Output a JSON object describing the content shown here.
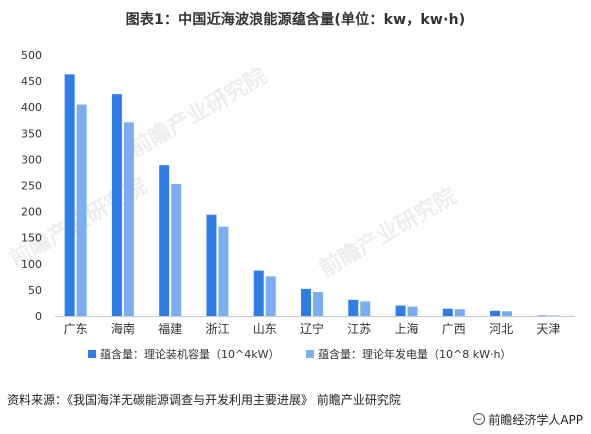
{
  "title": "图表1：中国近海波浪能源蕴含量(单位：kw，kw·h)",
  "source": "资料来源：《我国海洋无碳能源调查与开发利用主要进展》 前瞻产业研究院",
  "app_label": "前瞻经济学人APP",
  "watermark": "前瞻产业研究院",
  "colors": {
    "series1": "#2f7ee8",
    "series2": "#7aaef0",
    "axis": "#c9c9c9"
  },
  "chart_data": {
    "type": "bar",
    "title": "图表1：中国近海波浪能源蕴含量(单位：kw，kw·h)",
    "categories": [
      "广东",
      "海南",
      "福建",
      "浙江",
      "山东",
      "辽宁",
      "江苏",
      "上海",
      "广西",
      "河北",
      "天津"
    ],
    "series": [
      {
        "name": "蕴含量：理论装机容量（10^4kW）",
        "values": [
          463,
          425,
          289,
          194,
          87,
          52,
          31,
          20,
          14,
          10,
          1
        ]
      },
      {
        "name": "蕴含量：理论年发电量（10^8 kW·h）",
        "values": [
          405,
          371,
          253,
          171,
          76,
          46,
          28,
          18,
          13,
          9,
          1
        ]
      }
    ],
    "yticks": [
      0,
      50,
      100,
      150,
      200,
      250,
      300,
      350,
      400,
      450,
      500
    ],
    "ylim": [
      0,
      500
    ],
    "legend_position": "bottom",
    "grid": false
  }
}
